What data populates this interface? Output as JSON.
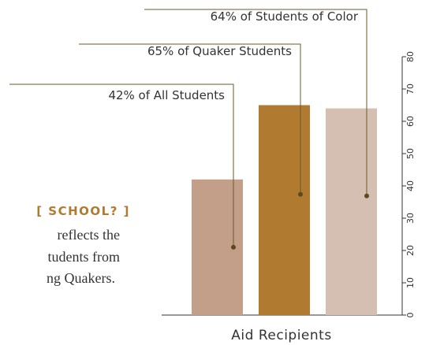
{
  "chart_data": {
    "type": "bar",
    "values": [
      42,
      65,
      64
    ],
    "value_labels": [
      "42% of All Students",
      "65% of Quaker Students",
      "64% of Students of Color"
    ],
    "colors": [
      "#c39e89",
      "#b07a30",
      "#d5bfb3"
    ],
    "x_label": "Aid Recipients",
    "ylim": [
      0,
      80
    ],
    "yticks": [
      0,
      10,
      20,
      30,
      40,
      50,
      60,
      70,
      80
    ]
  },
  "side_text": {
    "heading": "[ SCHOOL? ]",
    "lines": [
      "reflects the",
      "tudents from",
      "ng Quakers."
    ]
  }
}
